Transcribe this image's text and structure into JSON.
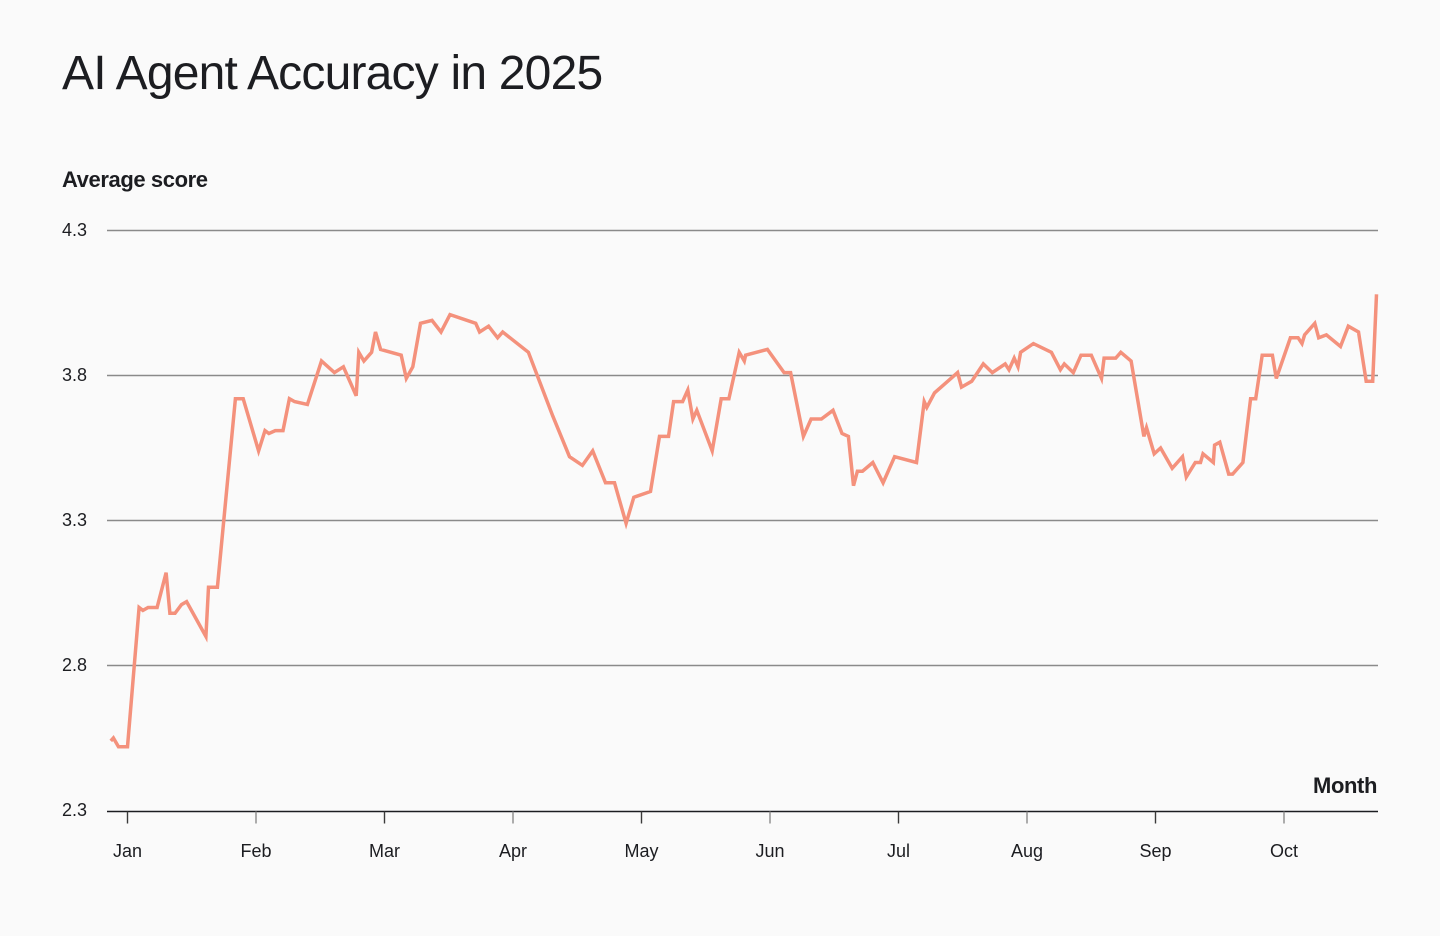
{
  "title": "AI Agent Accuracy in 2025",
  "y_axis_title": "Average score",
  "x_axis_title": "Month",
  "colors": {
    "line": "#f4917c",
    "gridline": "#8a8a8a",
    "axis": "#1c1d21",
    "background": "#fafafa"
  },
  "chart_data": {
    "type": "line",
    "title": "AI Agent Accuracy in 2025",
    "xlabel": "Month",
    "ylabel": "Average score",
    "ylim": [
      2.3,
      4.3
    ],
    "yticks": [
      4.3,
      3.8,
      3.3,
      2.8,
      2.3
    ],
    "ytick_labels": [
      "4.3",
      "3.8",
      "3.3",
      "2.8",
      "2.3"
    ],
    "xtick_labels": [
      "Jan",
      "Feb",
      "Mar",
      "Apr",
      "May",
      "Jun",
      "Jul",
      "Aug",
      "Sep",
      "Oct"
    ],
    "grid": "horizontal",
    "legend": "none",
    "x_unit": "months since Jan 1 (fractional)",
    "series": [
      {
        "name": "Average score",
        "points": [
          [
            -0.13,
            2.54
          ],
          [
            -0.11,
            2.55
          ],
          [
            -0.07,
            2.52
          ],
          [
            0.0,
            2.52
          ],
          [
            0.09,
            3.0
          ],
          [
            0.12,
            2.99
          ],
          [
            0.16,
            3.0
          ],
          [
            0.23,
            3.0
          ],
          [
            0.3,
            3.12
          ],
          [
            0.33,
            2.98
          ],
          [
            0.37,
            2.98
          ],
          [
            0.42,
            3.01
          ],
          [
            0.46,
            3.02
          ],
          [
            0.61,
            2.9
          ],
          [
            0.63,
            3.07
          ],
          [
            0.7,
            3.07
          ],
          [
            0.84,
            3.72
          ],
          [
            0.9,
            3.72
          ],
          [
            1.02,
            3.54
          ],
          [
            1.07,
            3.61
          ],
          [
            1.1,
            3.6
          ],
          [
            1.15,
            3.61
          ],
          [
            1.21,
            3.61
          ],
          [
            1.26,
            3.72
          ],
          [
            1.3,
            3.71
          ],
          [
            1.4,
            3.7
          ],
          [
            1.51,
            3.85
          ],
          [
            1.61,
            3.81
          ],
          [
            1.68,
            3.83
          ],
          [
            1.78,
            3.73
          ],
          [
            1.8,
            3.88
          ],
          [
            1.84,
            3.85
          ],
          [
            1.9,
            3.88
          ],
          [
            1.93,
            3.95
          ],
          [
            1.97,
            3.89
          ],
          [
            2.13,
            3.87
          ],
          [
            2.17,
            3.79
          ],
          [
            2.22,
            3.83
          ],
          [
            2.28,
            3.98
          ],
          [
            2.37,
            3.99
          ],
          [
            2.44,
            3.95
          ],
          [
            2.51,
            4.01
          ],
          [
            2.71,
            3.98
          ],
          [
            2.74,
            3.95
          ],
          [
            2.81,
            3.97
          ],
          [
            2.88,
            3.93
          ],
          [
            2.92,
            3.95
          ],
          [
            3.12,
            3.88
          ],
          [
            3.31,
            3.66
          ],
          [
            3.44,
            3.52
          ],
          [
            3.54,
            3.49
          ],
          [
            3.62,
            3.54
          ],
          [
            3.72,
            3.43
          ],
          [
            3.79,
            3.43
          ],
          [
            3.88,
            3.29
          ],
          [
            3.94,
            3.38
          ],
          [
            4.07,
            3.4
          ],
          [
            4.14,
            3.59
          ],
          [
            4.21,
            3.59
          ],
          [
            4.25,
            3.71
          ],
          [
            4.32,
            3.71
          ],
          [
            4.36,
            3.75
          ],
          [
            4.4,
            3.65
          ],
          [
            4.43,
            3.68
          ],
          [
            4.55,
            3.54
          ],
          [
            4.62,
            3.72
          ],
          [
            4.68,
            3.72
          ],
          [
            4.76,
            3.88
          ],
          [
            4.8,
            3.85
          ],
          [
            4.81,
            3.87
          ],
          [
            4.98,
            3.89
          ],
          [
            5.11,
            3.81
          ],
          [
            5.16,
            3.81
          ],
          [
            5.26,
            3.59
          ],
          [
            5.32,
            3.65
          ],
          [
            5.4,
            3.65
          ],
          [
            5.49,
            3.68
          ],
          [
            5.56,
            3.6
          ],
          [
            5.61,
            3.59
          ],
          [
            5.65,
            3.42
          ],
          [
            5.68,
            3.47
          ],
          [
            5.72,
            3.47
          ],
          [
            5.8,
            3.5
          ],
          [
            5.88,
            3.43
          ],
          [
            5.97,
            3.52
          ],
          [
            6.14,
            3.5
          ],
          [
            6.2,
            3.71
          ],
          [
            6.22,
            3.69
          ],
          [
            6.28,
            3.74
          ],
          [
            6.46,
            3.81
          ],
          [
            6.49,
            3.76
          ],
          [
            6.57,
            3.78
          ],
          [
            6.66,
            3.84
          ],
          [
            6.73,
            3.81
          ],
          [
            6.83,
            3.84
          ],
          [
            6.86,
            3.82
          ],
          [
            6.9,
            3.86
          ],
          [
            6.93,
            3.83
          ],
          [
            6.95,
            3.88
          ],
          [
            7.05,
            3.91
          ],
          [
            7.19,
            3.88
          ],
          [
            7.26,
            3.82
          ],
          [
            7.29,
            3.84
          ],
          [
            7.36,
            3.81
          ],
          [
            7.42,
            3.87
          ],
          [
            7.5,
            3.87
          ],
          [
            7.58,
            3.79
          ],
          [
            7.6,
            3.86
          ],
          [
            7.69,
            3.86
          ],
          [
            7.73,
            3.88
          ],
          [
            7.81,
            3.85
          ],
          [
            7.91,
            3.59
          ],
          [
            7.93,
            3.62
          ],
          [
            7.99,
            3.53
          ],
          [
            8.04,
            3.55
          ],
          [
            8.13,
            3.48
          ],
          [
            8.21,
            3.52
          ],
          [
            8.24,
            3.45
          ],
          [
            8.31,
            3.5
          ],
          [
            8.35,
            3.5
          ],
          [
            8.37,
            3.53
          ],
          [
            8.45,
            3.5
          ],
          [
            8.46,
            3.56
          ],
          [
            8.5,
            3.57
          ],
          [
            8.57,
            3.46
          ],
          [
            8.6,
            3.46
          ],
          [
            8.68,
            3.5
          ],
          [
            8.74,
            3.72
          ],
          [
            8.78,
            3.72
          ],
          [
            8.83,
            3.87
          ],
          [
            8.91,
            3.87
          ],
          [
            8.94,
            3.79
          ],
          [
            9.05,
            3.93
          ],
          [
            9.11,
            3.93
          ],
          [
            9.14,
            3.91
          ],
          [
            9.16,
            3.94
          ],
          [
            9.24,
            3.98
          ],
          [
            9.27,
            3.93
          ],
          [
            9.33,
            3.94
          ],
          [
            9.44,
            3.9
          ],
          [
            9.5,
            3.97
          ],
          [
            9.58,
            3.95
          ],
          [
            9.64,
            3.78
          ],
          [
            9.69,
            3.78
          ],
          [
            9.72,
            4.08
          ]
        ]
      }
    ]
  }
}
